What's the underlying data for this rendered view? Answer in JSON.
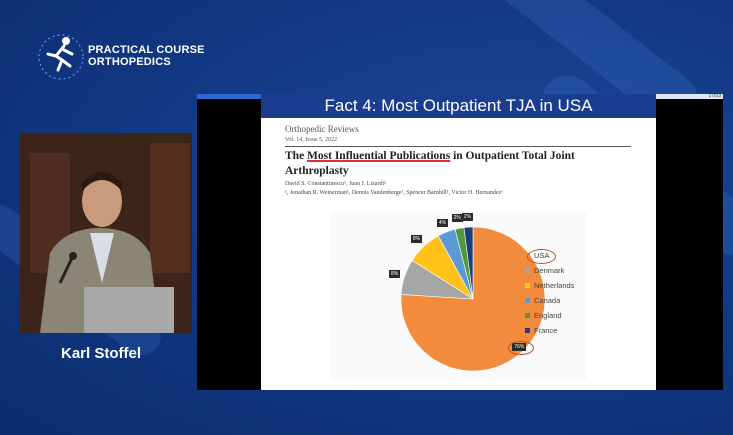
{
  "branding": {
    "line1": "PRACTICAL COURSE",
    "line2": "ORTHOPEDICS"
  },
  "speaker": {
    "name": "Karl Stoffel"
  },
  "slide": {
    "title": "Fact 4: Most Outpatient TJA in USA",
    "page_indicator": "17/53",
    "progress": 0.18
  },
  "paper": {
    "journal": "Orthopedic Reviews",
    "volume": "Vol. 14, Issue 5, 2022",
    "title_pre": "The ",
    "title_highlight": "Most Influential Publications",
    "title_post": " in Outpatient Total Joint Arthroplasty",
    "authors_line1": "David S. Constantinescu¹, Juan J. Lizardi²",
    "authors_line2": "¹, Jonathan R. Weinerman¹, Dennis Vandenberge¹, Spencer Barnhill¹, Victor H. Hernandez¹"
  },
  "chart_data": {
    "type": "pie",
    "categories": [
      "USA",
      "Denmark",
      "Netherlands",
      "Canada",
      "England",
      "France"
    ],
    "values": [
      76,
      8,
      8,
      4,
      2,
      2
    ],
    "labels": [
      "76%",
      "8%",
      "8%",
      "4%",
      "2%",
      "2%"
    ],
    "colors": [
      "#f28b3c",
      "#a6a6a6",
      "#ffc21a",
      "#5b9bd5",
      "#4f9a3a",
      "#1f3d7a"
    ],
    "legend_position": "right",
    "highlight": "USA"
  }
}
